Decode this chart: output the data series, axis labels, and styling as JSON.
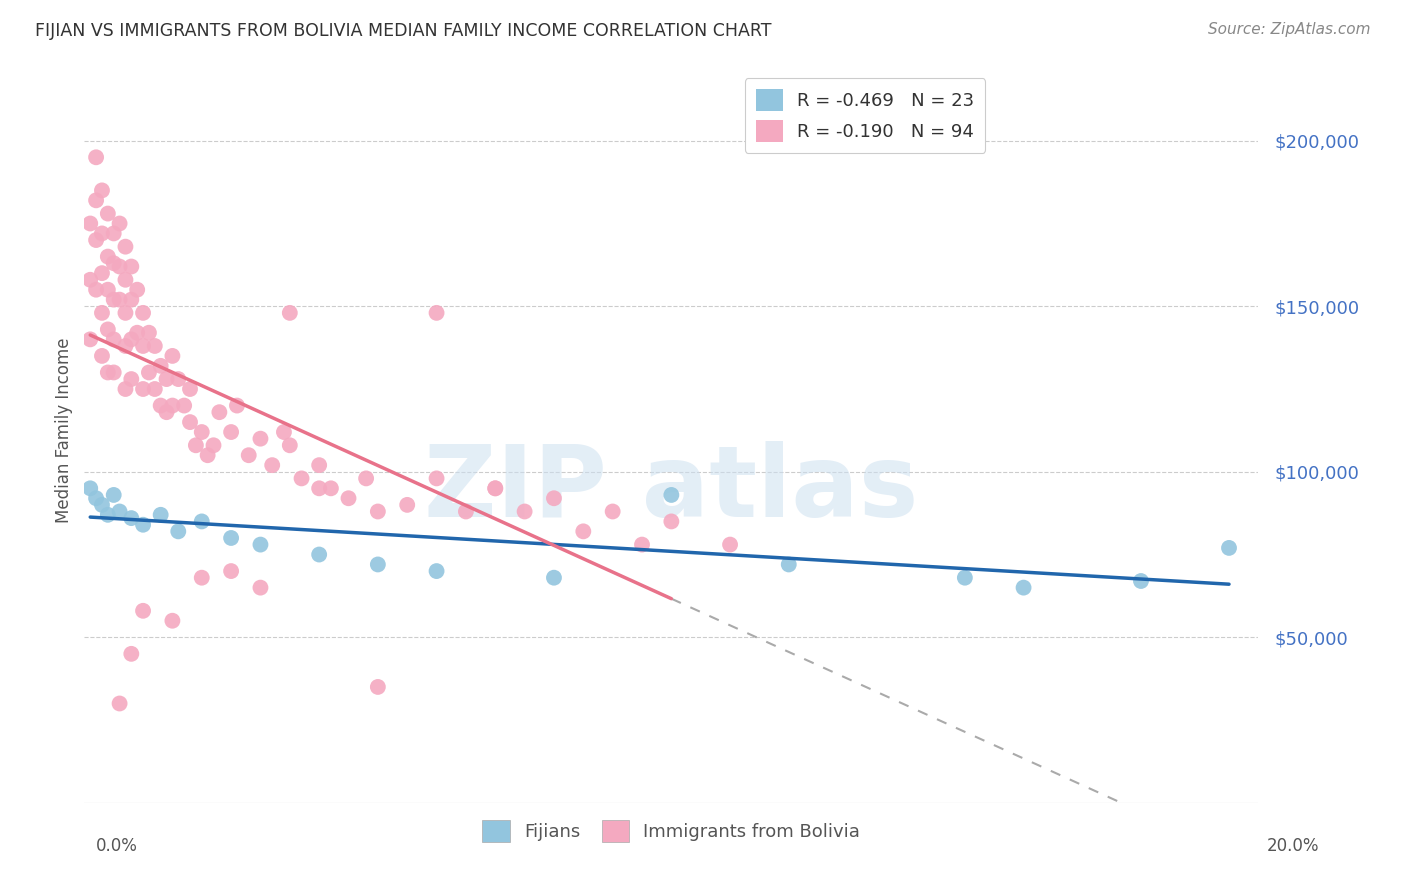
{
  "title": "FIJIAN VS IMMIGRANTS FROM BOLIVIA MEDIAN FAMILY INCOME CORRELATION CHART",
  "source": "Source: ZipAtlas.com",
  "ylabel": "Median Family Income",
  "xlim": [
    0.0,
    0.2
  ],
  "ylim": [
    0,
    225000
  ],
  "fijian_color": "#92c5de",
  "bolivia_color": "#f4a9c0",
  "fijian_line_color": "#2166ac",
  "bolivia_line_color": "#e8728a",
  "fijian_R": "-0.469",
  "fijian_N": "23",
  "bolivia_R": "-0.190",
  "bolivia_N": "94",
  "legend_R_color": "#d62728",
  "legend_N_color": "#1f77b4",
  "fijian_scatter_x": [
    0.001,
    0.002,
    0.003,
    0.004,
    0.005,
    0.006,
    0.008,
    0.01,
    0.013,
    0.016,
    0.02,
    0.025,
    0.03,
    0.04,
    0.05,
    0.06,
    0.08,
    0.1,
    0.12,
    0.15,
    0.16,
    0.18,
    0.195
  ],
  "fijian_scatter_y": [
    95000,
    92000,
    90000,
    87000,
    93000,
    88000,
    86000,
    84000,
    87000,
    82000,
    85000,
    80000,
    78000,
    75000,
    72000,
    70000,
    68000,
    93000,
    72000,
    68000,
    65000,
    67000,
    77000
  ],
  "bolivia_scatter_x": [
    0.001,
    0.001,
    0.001,
    0.002,
    0.002,
    0.002,
    0.002,
    0.003,
    0.003,
    0.003,
    0.003,
    0.003,
    0.004,
    0.004,
    0.004,
    0.004,
    0.004,
    0.005,
    0.005,
    0.005,
    0.005,
    0.005,
    0.006,
    0.006,
    0.006,
    0.007,
    0.007,
    0.007,
    0.007,
    0.007,
    0.008,
    0.008,
    0.008,
    0.008,
    0.009,
    0.009,
    0.01,
    0.01,
    0.01,
    0.011,
    0.011,
    0.012,
    0.012,
    0.013,
    0.013,
    0.014,
    0.014,
    0.015,
    0.015,
    0.016,
    0.017,
    0.018,
    0.018,
    0.019,
    0.02,
    0.021,
    0.022,
    0.023,
    0.025,
    0.026,
    0.028,
    0.03,
    0.032,
    0.034,
    0.035,
    0.037,
    0.04,
    0.042,
    0.045,
    0.048,
    0.05,
    0.055,
    0.06,
    0.065,
    0.07,
    0.075,
    0.08,
    0.085,
    0.09,
    0.095,
    0.1,
    0.035,
    0.06,
    0.11,
    0.04,
    0.02,
    0.015,
    0.03,
    0.025,
    0.01,
    0.008,
    0.006,
    0.05,
    0.07
  ],
  "bolivia_scatter_y": [
    175000,
    158000,
    140000,
    195000,
    182000,
    170000,
    155000,
    185000,
    172000,
    160000,
    148000,
    135000,
    178000,
    165000,
    155000,
    143000,
    130000,
    172000,
    163000,
    152000,
    140000,
    130000,
    175000,
    162000,
    152000,
    168000,
    158000,
    148000,
    138000,
    125000,
    162000,
    152000,
    140000,
    128000,
    155000,
    142000,
    148000,
    138000,
    125000,
    142000,
    130000,
    138000,
    125000,
    132000,
    120000,
    128000,
    118000,
    135000,
    120000,
    128000,
    120000,
    115000,
    125000,
    108000,
    112000,
    105000,
    108000,
    118000,
    112000,
    120000,
    105000,
    110000,
    102000,
    112000,
    108000,
    98000,
    102000,
    95000,
    92000,
    98000,
    88000,
    90000,
    98000,
    88000,
    95000,
    88000,
    92000,
    82000,
    88000,
    78000,
    85000,
    148000,
    148000,
    78000,
    95000,
    68000,
    55000,
    65000,
    70000,
    58000,
    45000,
    30000,
    35000,
    95000
  ]
}
